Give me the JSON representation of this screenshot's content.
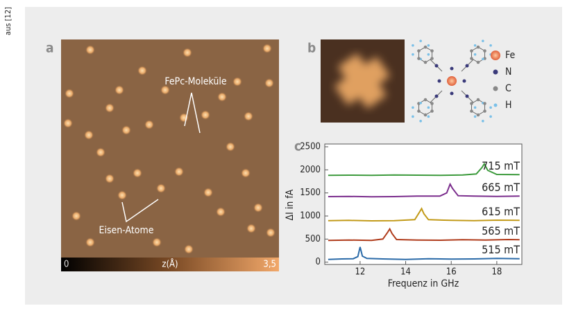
{
  "side_note": "aus [12]",
  "panel_a": {
    "label": "a",
    "annotations": [
      "FePc-Moleküle",
      "Eisen-Atome"
    ],
    "colorbar": {
      "min_label": "0",
      "title": "z(Å)",
      "max_label": "3,5"
    }
  },
  "panel_b": {
    "label": "b",
    "legend": [
      "Fe",
      "N",
      "C",
      "H"
    ]
  },
  "panel_c": {
    "label": "c"
  },
  "chart_data": {
    "type": "line",
    "x_label": "Frequenz in GHz",
    "y_label": "ΔI in fA",
    "xlim": [
      10.45,
      19.1
    ],
    "xticks": [
      12,
      14,
      16,
      18
    ],
    "ylim": [
      -50,
      2560
    ],
    "yticks": [
      0,
      500,
      1000,
      1500,
      2000,
      2500
    ],
    "series": [
      {
        "name": "515 mT",
        "color": "#2a6aa8",
        "x": [
          10.6,
          11.2,
          11.7,
          11.9,
          12.0,
          12.1,
          12.3,
          13,
          14,
          15,
          16,
          17,
          18,
          19
        ],
        "values": [
          60,
          70,
          75,
          120,
          330,
          130,
          80,
          70,
          60,
          75,
          65,
          70,
          80,
          75
        ]
      },
      {
        "name": "565 mT",
        "color": "#b03c1c",
        "x": [
          10.6,
          11.5,
          12.5,
          13.0,
          13.2,
          13.3,
          13.4,
          13.6,
          14.5,
          15.5,
          16.5,
          17.5,
          18.5,
          19.0
        ],
        "values": [
          470,
          480,
          470,
          500,
          640,
          720,
          620,
          490,
          480,
          475,
          485,
          480,
          490,
          485
        ]
      },
      {
        "name": "615 mT",
        "color": "#c29a18",
        "x": [
          10.6,
          11.5,
          12.5,
          13.5,
          14.4,
          14.6,
          14.7,
          14.8,
          15.0,
          16,
          17,
          18,
          19
        ],
        "values": [
          900,
          905,
          895,
          900,
          920,
          1080,
          1160,
          1050,
          920,
          905,
          900,
          910,
          905
        ]
      },
      {
        "name": "665 mT",
        "color": "#7a2c8c",
        "x": [
          10.6,
          11.5,
          12.5,
          13.5,
          14.5,
          15.5,
          15.8,
          15.95,
          16.05,
          16.3,
          17,
          18,
          19
        ],
        "values": [
          1420,
          1425,
          1415,
          1420,
          1430,
          1430,
          1500,
          1690,
          1600,
          1440,
          1430,
          1425,
          1430
        ]
      },
      {
        "name": "715 mT",
        "color": "#3c9a3c",
        "x": [
          10.6,
          11.5,
          12.5,
          13.5,
          14.5,
          15.5,
          16.5,
          17.1,
          17.35,
          17.45,
          17.6,
          18,
          19
        ],
        "values": [
          1880,
          1885,
          1880,
          1890,
          1885,
          1880,
          1890,
          1910,
          2050,
          2130,
          1990,
          1900,
          1895
        ]
      }
    ]
  }
}
